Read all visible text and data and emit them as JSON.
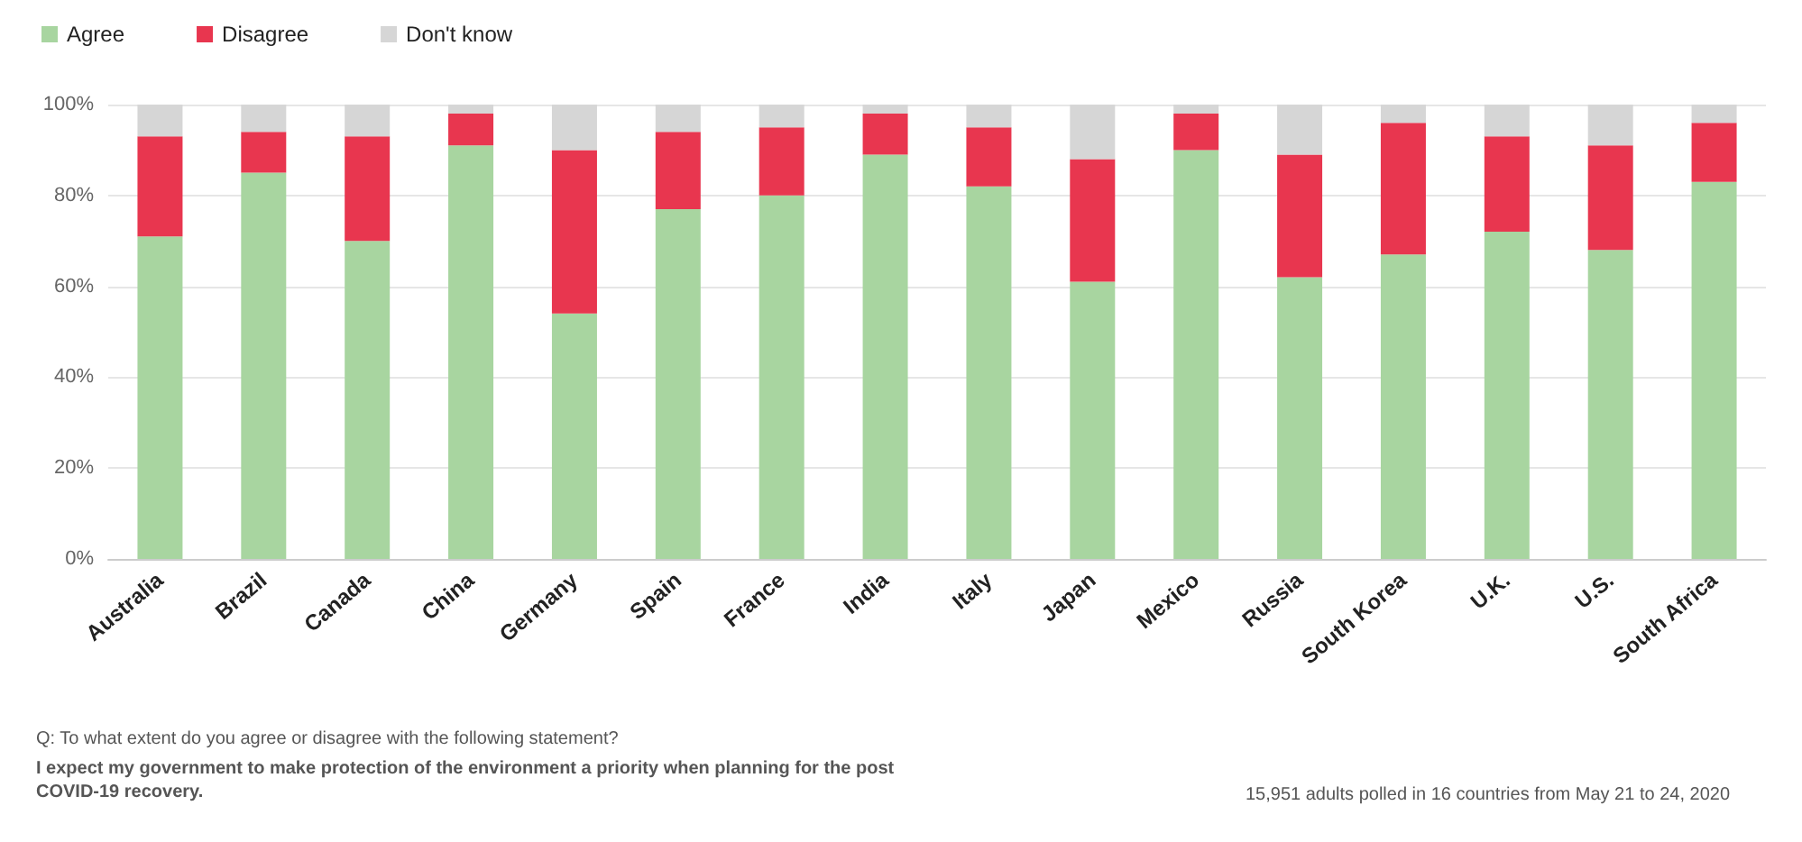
{
  "chart_data": {
    "type": "bar",
    "stacked": true,
    "categories": [
      "Australia",
      "Brazil",
      "Canada",
      "China",
      "Germany",
      "Spain",
      "France",
      "India",
      "Italy",
      "Japan",
      "Mexico",
      "Russia",
      "South Korea",
      "U.K.",
      "U.S.",
      "South Africa"
    ],
    "series": [
      {
        "name": "Agree",
        "color": "#a8d5a0",
        "values": [
          71,
          85,
          70,
          91,
          54,
          77,
          80,
          89,
          82,
          61,
          90,
          62,
          67,
          72,
          68,
          83
        ]
      },
      {
        "name": "Disagree",
        "color": "#e8364f",
        "values": [
          22,
          9,
          23,
          7,
          36,
          17,
          15,
          9,
          13,
          27,
          8,
          27,
          29,
          21,
          23,
          13
        ]
      },
      {
        "name": "Don't know",
        "color": "#d6d6d6",
        "values": [
          7,
          6,
          7,
          2,
          10,
          6,
          5,
          2,
          5,
          12,
          2,
          11,
          4,
          7,
          9,
          4
        ]
      }
    ],
    "ylim": [
      0,
      100
    ],
    "yticks": [
      {
        "value": 0,
        "label": "0%"
      },
      {
        "value": 20,
        "label": "20%"
      },
      {
        "value": 40,
        "label": "40%"
      },
      {
        "value": 60,
        "label": "60%"
      },
      {
        "value": 80,
        "label": "80%"
      },
      {
        "value": 100,
        "label": "100%"
      }
    ],
    "grid": "y",
    "legend": "top left",
    "annotations": [
      "Q: To what extent do you agree or disagree with the following statement?",
      "I expect my government to make protection of the environment a priority when planning for the post COVID-19 recovery.",
      "15,951 adults polled in 16 countries from May 21 to 24, 2020"
    ]
  }
}
